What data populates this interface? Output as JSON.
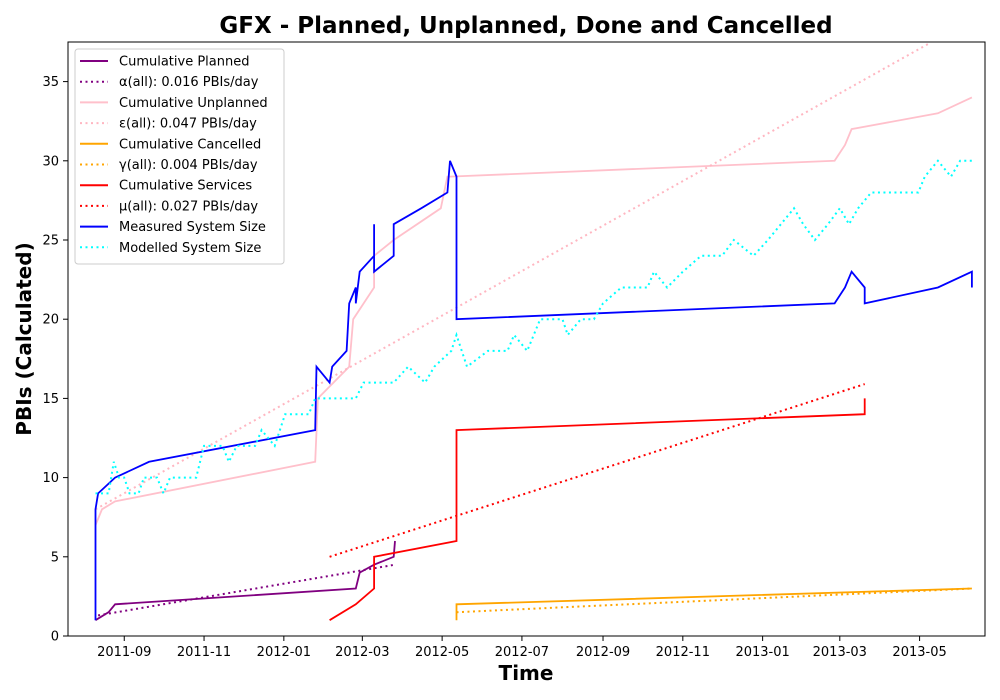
{
  "chart_data": {
    "type": "line",
    "title": "GFX - Planned, Unplanned, Done  and Cancelled",
    "xlabel": "Time",
    "ylabel": "PBIs (Calculated)",
    "xlim": [
      "2011-07-20",
      "2013-06-20"
    ],
    "ylim": [
      0,
      37.5
    ],
    "x_ticks": [
      "2011-09",
      "2011-11",
      "2012-01",
      "2012-03",
      "2012-05",
      "2012-07",
      "2012-09",
      "2012-11",
      "2013-01",
      "2013-03",
      "2013-05"
    ],
    "y_ticks": [
      0,
      5,
      10,
      15,
      20,
      25,
      30,
      35
    ],
    "legend_position": "upper-left",
    "grid": false,
    "series": [
      {
        "name": "Cumulative Planned",
        "color": "#800080",
        "style": "solid",
        "points": [
          [
            "2011-08-10",
            1
          ],
          [
            "2011-08-20",
            1.5
          ],
          [
            "2011-08-25",
            2
          ],
          [
            "2012-02-25",
            3
          ],
          [
            "2012-02-28",
            4
          ],
          [
            "2012-03-10",
            4.5
          ],
          [
            "2012-03-25",
            5
          ],
          [
            "2012-03-26",
            6
          ]
        ]
      },
      {
        "name": "α(all): 0.016 PBIs/day",
        "color": "#800080",
        "style": "dotted",
        "points": [
          [
            "2011-08-12",
            1.3
          ],
          [
            "2012-03-26",
            4.5
          ]
        ]
      },
      {
        "name": "Cumulative Unplanned",
        "color": "#ffc0cb",
        "style": "solid",
        "points": [
          [
            "2011-08-10",
            7
          ],
          [
            "2011-08-15",
            8
          ],
          [
            "2011-08-25",
            8.5
          ],
          [
            "2012-01-25",
            11
          ],
          [
            "2012-01-27",
            15
          ],
          [
            "2012-02-20",
            17
          ],
          [
            "2012-02-23",
            20
          ],
          [
            "2012-03-10",
            22
          ],
          [
            "2012-03-10",
            24
          ],
          [
            "2012-03-25",
            25
          ],
          [
            "2012-04-30",
            27
          ],
          [
            "2012-05-05",
            29
          ],
          [
            "2012-05-07",
            29
          ],
          [
            "2013-02-25",
            30
          ],
          [
            "2013-03-05",
            31
          ],
          [
            "2013-03-10",
            32
          ],
          [
            "2013-05-15",
            33
          ],
          [
            "2013-06-10",
            34
          ]
        ]
      },
      {
        "name": "ε(all): 0.047 PBIs/day",
        "color": "#ffb6c1",
        "style": "dotted",
        "points": [
          [
            "2011-08-10",
            8
          ],
          [
            "2013-05-08",
            37.4
          ]
        ]
      },
      {
        "name": "Cumulative Cancelled",
        "color": "#ffa500",
        "style": "solid",
        "points": [
          [
            "2012-05-12",
            1
          ],
          [
            "2012-05-12",
            2
          ],
          [
            "2013-06-10",
            3
          ]
        ]
      },
      {
        "name": "γ(all): 0.004 PBIs/day",
        "color": "#ffa500",
        "style": "dotted",
        "points": [
          [
            "2012-05-12",
            1.5
          ],
          [
            "2013-06-10",
            3
          ]
        ]
      },
      {
        "name": "Cumulative Services",
        "color": "#ff0000",
        "style": "solid",
        "points": [
          [
            "2012-02-05",
            1
          ],
          [
            "2012-02-25",
            2
          ],
          [
            "2012-03-10",
            3
          ],
          [
            "2012-03-10",
            5
          ],
          [
            "2012-05-12",
            6
          ],
          [
            "2012-05-12",
            13
          ],
          [
            "2013-03-20",
            14
          ],
          [
            "2013-03-20",
            15
          ]
        ]
      },
      {
        "name": "μ(all): 0.027 PBIs/day",
        "color": "#ff0000",
        "style": "dotted",
        "points": [
          [
            "2012-02-05",
            5
          ],
          [
            "2013-03-20",
            15.9
          ]
        ]
      },
      {
        "name": "Measured System Size",
        "color": "#0000ff",
        "style": "solid",
        "points": [
          [
            "2011-08-10",
            1
          ],
          [
            "2011-08-10",
            8
          ],
          [
            "2011-08-12",
            9
          ],
          [
            "2011-08-25",
            10
          ],
          [
            "2011-09-20",
            11
          ],
          [
            "2012-01-25",
            13
          ],
          [
            "2012-01-26",
            17
          ],
          [
            "2012-02-05",
            16
          ],
          [
            "2012-02-07",
            17
          ],
          [
            "2012-02-18",
            18
          ],
          [
            "2012-02-20",
            21
          ],
          [
            "2012-02-25",
            22
          ],
          [
            "2012-02-25",
            21
          ],
          [
            "2012-02-28",
            23
          ],
          [
            "2012-03-10",
            24
          ],
          [
            "2012-03-10",
            26
          ],
          [
            "2012-03-10",
            23
          ],
          [
            "2012-03-25",
            24
          ],
          [
            "2012-03-25",
            26
          ],
          [
            "2012-04-15",
            27
          ],
          [
            "2012-05-05",
            28
          ],
          [
            "2012-05-07",
            30
          ],
          [
            "2012-05-12",
            29
          ],
          [
            "2012-05-12",
            20
          ],
          [
            "2013-02-25",
            21
          ],
          [
            "2013-03-05",
            22
          ],
          [
            "2013-03-10",
            23
          ],
          [
            "2013-03-20",
            22
          ],
          [
            "2013-03-20",
            21
          ],
          [
            "2013-05-15",
            22
          ],
          [
            "2013-06-10",
            23
          ],
          [
            "2013-06-10",
            22
          ]
        ]
      },
      {
        "name": "Modelled System Size",
        "color": "#00ffff",
        "style": "dotted",
        "points": [
          [
            "2011-08-10",
            9
          ],
          [
            "2011-08-20",
            9
          ],
          [
            "2011-08-24",
            11
          ],
          [
            "2011-08-28",
            10
          ],
          [
            "2011-09-01",
            10
          ],
          [
            "2011-09-05",
            9
          ],
          [
            "2011-09-12",
            9
          ],
          [
            "2011-09-16",
            10
          ],
          [
            "2011-09-26",
            10
          ],
          [
            "2011-10-01",
            9
          ],
          [
            "2011-10-06",
            10
          ],
          [
            "2011-10-26",
            10
          ],
          [
            "2011-11-01",
            12
          ],
          [
            "2011-11-15",
            12
          ],
          [
            "2011-11-20",
            11
          ],
          [
            "2011-11-26",
            12
          ],
          [
            "2011-12-10",
            12
          ],
          [
            "2011-12-15",
            13
          ],
          [
            "2011-12-25",
            12
          ],
          [
            "2012-01-02",
            14
          ],
          [
            "2012-01-20",
            14
          ],
          [
            "2012-01-25",
            15
          ],
          [
            "2012-02-05",
            15
          ],
          [
            "2012-02-15",
            15
          ],
          [
            "2012-02-25",
            15
          ],
          [
            "2012-03-02",
            16
          ],
          [
            "2012-03-25",
            16
          ],
          [
            "2012-04-05",
            17
          ],
          [
            "2012-04-18",
            16
          ],
          [
            "2012-04-25",
            17
          ],
          [
            "2012-05-08",
            18
          ],
          [
            "2012-05-12",
            19
          ],
          [
            "2012-05-20",
            17
          ],
          [
            "2012-06-05",
            18
          ],
          [
            "2012-06-20",
            18
          ],
          [
            "2012-06-25",
            19
          ],
          [
            "2012-07-05",
            18
          ],
          [
            "2012-07-15",
            20
          ],
          [
            "2012-08-01",
            20
          ],
          [
            "2012-08-05",
            19
          ],
          [
            "2012-08-15",
            20
          ],
          [
            "2012-08-25",
            20
          ],
          [
            "2012-09-01",
            21
          ],
          [
            "2012-09-15",
            22
          ],
          [
            "2012-10-05",
            22
          ],
          [
            "2012-10-10",
            23
          ],
          [
            "2012-10-20",
            22
          ],
          [
            "2012-11-01",
            23
          ],
          [
            "2012-11-15",
            24
          ],
          [
            "2012-12-01",
            24
          ],
          [
            "2012-12-10",
            25
          ],
          [
            "2012-12-25",
            24
          ],
          [
            "2013-01-05",
            25
          ],
          [
            "2013-01-15",
            26
          ],
          [
            "2013-01-25",
            27
          ],
          [
            "2013-02-01",
            26
          ],
          [
            "2013-02-10",
            25
          ],
          [
            "2013-02-20",
            26
          ],
          [
            "2013-03-01",
            27
          ],
          [
            "2013-03-08",
            26
          ],
          [
            "2013-03-15",
            27
          ],
          [
            "2013-03-25",
            28
          ],
          [
            "2013-04-30",
            28
          ],
          [
            "2013-05-05",
            29
          ],
          [
            "2013-05-15",
            30
          ],
          [
            "2013-05-25",
            29
          ],
          [
            "2013-06-01",
            30
          ],
          [
            "2013-06-10",
            30
          ]
        ]
      }
    ]
  }
}
